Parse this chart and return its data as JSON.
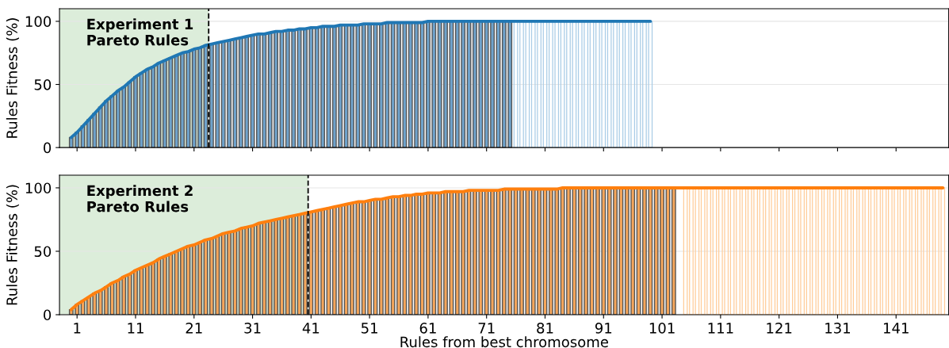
{
  "chart_data": [
    {
      "type": "bar",
      "xlim": [
        -2,
        150
      ],
      "ylim": [
        0,
        110
      ],
      "yticks": [
        0,
        50,
        100
      ],
      "ylabel": "Rules Fitness (%)",
      "grid": "y",
      "tick_labels": "y",
      "xticks": [
        {
          "value": 1,
          "label": null
        },
        {
          "value": 11,
          "label": null
        },
        {
          "value": 21,
          "label": null
        },
        {
          "value": 31,
          "label": null
        },
        {
          "value": 41,
          "label": null
        },
        {
          "value": 51,
          "label": null
        },
        {
          "value": 61,
          "label": null
        },
        {
          "value": 71,
          "label": null
        },
        {
          "value": 81,
          "label": null
        },
        {
          "value": 91,
          "label": null
        },
        {
          "value": 101,
          "label": null
        },
        {
          "value": 111,
          "label": null
        },
        {
          "value": 121,
          "label": null
        },
        {
          "value": 131,
          "label": null
        },
        {
          "value": 141,
          "label": null
        }
      ],
      "x": [
        0,
        1,
        2,
        3,
        4,
        5,
        6,
        7,
        8,
        9,
        10,
        11,
        12,
        13,
        14,
        15,
        16,
        17,
        18,
        19,
        20,
        21,
        22,
        23,
        24,
        25,
        26,
        27,
        28,
        29,
        30,
        31,
        32,
        33,
        34,
        35,
        36,
        37,
        38,
        39,
        40,
        41,
        42,
        43,
        44,
        45,
        46,
        47,
        48,
        49,
        50,
        51,
        52,
        53,
        54,
        55,
        56,
        57,
        58,
        59,
        60,
        61,
        62,
        63,
        64,
        65,
        66,
        67,
        68,
        69,
        70,
        71,
        72,
        73,
        74,
        75,
        76,
        77,
        78,
        79,
        80,
        81,
        82,
        83,
        84,
        85,
        86,
        87,
        88,
        89,
        90,
        91,
        92,
        93,
        94,
        95,
        96,
        97,
        98,
        99
      ],
      "bands": [
        {
          "axis": "x",
          "from": -2,
          "to": 23.5,
          "color": "#dcedda"
        }
      ],
      "ref_lines": [
        {
          "axis": "x",
          "value": 23.5,
          "color": "#000000",
          "line_style": "dashed"
        }
      ],
      "annotations": [
        "Experiment 1\nPareto Rules"
      ],
      "series": [
        {
          "color": "#6fa3cc",
          "values": [
            8,
            12,
            17,
            22,
            27,
            32,
            37,
            41,
            45,
            48,
            52,
            56,
            59,
            62,
            64,
            67,
            69,
            71,
            73,
            75,
            76,
            78,
            79,
            81,
            82,
            83,
            84,
            85,
            86,
            87,
            88,
            89,
            90,
            90,
            91,
            92,
            92,
            93,
            93,
            94,
            94,
            95,
            95,
            96,
            96,
            96,
            97,
            97,
            97,
            97,
            98,
            98,
            98,
            98,
            99,
            99,
            99,
            99,
            99,
            99,
            99,
            100,
            100,
            100,
            100,
            100,
            100,
            100,
            100,
            100,
            100,
            100,
            100,
            100,
            100,
            100,
            null,
            null,
            null,
            null,
            null,
            null,
            null,
            null,
            null,
            null,
            null,
            null,
            null,
            null,
            null,
            null,
            null,
            null,
            null,
            null,
            null,
            null,
            null,
            null
          ]
        },
        {
          "color": "#a9cce6",
          "values": [
            null,
            null,
            null,
            null,
            null,
            null,
            null,
            null,
            null,
            null,
            null,
            null,
            null,
            null,
            null,
            null,
            null,
            null,
            null,
            null,
            null,
            null,
            null,
            null,
            null,
            null,
            null,
            null,
            null,
            null,
            null,
            null,
            null,
            null,
            null,
            null,
            null,
            null,
            null,
            null,
            null,
            null,
            null,
            null,
            null,
            null,
            null,
            null,
            null,
            null,
            null,
            null,
            null,
            null,
            null,
            null,
            null,
            null,
            null,
            null,
            null,
            null,
            null,
            null,
            null,
            null,
            null,
            null,
            null,
            null,
            null,
            null,
            null,
            null,
            null,
            null,
            100,
            100,
            100,
            100,
            100,
            100,
            100,
            100,
            100,
            100,
            100,
            100,
            100,
            100,
            100,
            100,
            100,
            100,
            100,
            100,
            100,
            100,
            100,
            100
          ]
        },
        {
          "type": "line",
          "color": "#1f77b4",
          "values": [
            8,
            12,
            17,
            22,
            27,
            32,
            37,
            41,
            45,
            48,
            52,
            56,
            59,
            62,
            64,
            67,
            69,
            71,
            73,
            75,
            76,
            78,
            79,
            81,
            82,
            83,
            84,
            85,
            86,
            87,
            88,
            89,
            90,
            90,
            91,
            92,
            92,
            93,
            93,
            94,
            94,
            95,
            95,
            96,
            96,
            96,
            97,
            97,
            97,
            97,
            98,
            98,
            98,
            98,
            99,
            99,
            99,
            99,
            99,
            99,
            99,
            100,
            100,
            100,
            100,
            100,
            100,
            100,
            100,
            100,
            100,
            100,
            100,
            100,
            100,
            100,
            100,
            100,
            100,
            100,
            100,
            100,
            100,
            100,
            100,
            100,
            100,
            100,
            100,
            100,
            100,
            100,
            100,
            100,
            100,
            100,
            100,
            100,
            100,
            100
          ]
        }
      ]
    },
    {
      "type": "bar",
      "xlim": [
        -2,
        150
      ],
      "ylim": [
        0,
        110
      ],
      "yticks": [
        0,
        50,
        100
      ],
      "ylabel": "Rules Fitness (%)",
      "xlabel": "Rules from best chromosome",
      "grid": "y",
      "xticks": [
        1,
        11,
        21,
        31,
        41,
        51,
        61,
        71,
        81,
        91,
        101,
        111,
        121,
        131,
        141
      ],
      "x": [
        0,
        1,
        2,
        3,
        4,
        5,
        6,
        7,
        8,
        9,
        10,
        11,
        12,
        13,
        14,
        15,
        16,
        17,
        18,
        19,
        20,
        21,
        22,
        23,
        24,
        25,
        26,
        27,
        28,
        29,
        30,
        31,
        32,
        33,
        34,
        35,
        36,
        37,
        38,
        39,
        40,
        41,
        42,
        43,
        44,
        45,
        46,
        47,
        48,
        49,
        50,
        51,
        52,
        53,
        54,
        55,
        56,
        57,
        58,
        59,
        60,
        61,
        62,
        63,
        64,
        65,
        66,
        67,
        68,
        69,
        70,
        71,
        72,
        73,
        74,
        75,
        76,
        77,
        78,
        79,
        80,
        81,
        82,
        83,
        84,
        85,
        86,
        87,
        88,
        89,
        90,
        91,
        92,
        93,
        94,
        95,
        96,
        97,
        98,
        99,
        100,
        101,
        102,
        103,
        104,
        105,
        106,
        107,
        108,
        109,
        110,
        111,
        112,
        113,
        114,
        115,
        116,
        117,
        118,
        119,
        120,
        121,
        122,
        123,
        124,
        125,
        126,
        127,
        128,
        129,
        130,
        131,
        132,
        133,
        134,
        135,
        136,
        137,
        138,
        139,
        140,
        141,
        142,
        143,
        144,
        145,
        146,
        147,
        148,
        149
      ],
      "bands": [
        {
          "axis": "x",
          "from": -2,
          "to": 40.5,
          "color": "#dcedda"
        }
      ],
      "ref_lines": [
        {
          "axis": "x",
          "value": 40.5,
          "color": "#000000",
          "line_style": "dashed"
        }
      ],
      "annotations": [
        "Experiment 2\nPareto Rules"
      ],
      "series": [
        {
          "color": "#f5a65b",
          "values": [
            4,
            8,
            11,
            14,
            17,
            19,
            22,
            25,
            27,
            30,
            32,
            35,
            37,
            39,
            41,
            44,
            46,
            48,
            50,
            52,
            54,
            55,
            57,
            59,
            60,
            62,
            64,
            65,
            66,
            68,
            69,
            70,
            72,
            73,
            74,
            75,
            76,
            77,
            78,
            79,
            80,
            81,
            82,
            83,
            84,
            85,
            86,
            87,
            88,
            89,
            89,
            90,
            91,
            91,
            92,
            93,
            93,
            94,
            94,
            95,
            95,
            96,
            96,
            96,
            97,
            97,
            97,
            97,
            98,
            98,
            98,
            98,
            98,
            98,
            99,
            99,
            99,
            99,
            99,
            99,
            99,
            99,
            99,
            99,
            100,
            100,
            100,
            100,
            100,
            100,
            100,
            100,
            100,
            100,
            100,
            100,
            100,
            100,
            100,
            100,
            100,
            100,
            100,
            100,
            null,
            null,
            null,
            null,
            null,
            null,
            null,
            null,
            null,
            null,
            null,
            null,
            null,
            null,
            null,
            null,
            null,
            null,
            null,
            null,
            null,
            null,
            null,
            null,
            null,
            null,
            null,
            null,
            null,
            null,
            null,
            null,
            null,
            null,
            null,
            null,
            null,
            null,
            null,
            null,
            null,
            null,
            null,
            null,
            null,
            null
          ]
        },
        {
          "color": "#ffcc99",
          "values": [
            null,
            null,
            null,
            null,
            null,
            null,
            null,
            null,
            null,
            null,
            null,
            null,
            null,
            null,
            null,
            null,
            null,
            null,
            null,
            null,
            null,
            null,
            null,
            null,
            null,
            null,
            null,
            null,
            null,
            null,
            null,
            null,
            null,
            null,
            null,
            null,
            null,
            null,
            null,
            null,
            null,
            null,
            null,
            null,
            null,
            null,
            null,
            null,
            null,
            null,
            null,
            null,
            null,
            null,
            null,
            null,
            null,
            null,
            null,
            null,
            null,
            null,
            null,
            null,
            null,
            null,
            null,
            null,
            null,
            null,
            null,
            null,
            null,
            null,
            null,
            null,
            null,
            null,
            null,
            null,
            null,
            null,
            null,
            null,
            null,
            null,
            null,
            null,
            null,
            null,
            null,
            null,
            null,
            null,
            null,
            null,
            null,
            null,
            null,
            null,
            null,
            null,
            null,
            null,
            null,
            100,
            100,
            100,
            100,
            100,
            100,
            100,
            100,
            100,
            100,
            100,
            100,
            100,
            100,
            100,
            100,
            100,
            100,
            100,
            100,
            100,
            100,
            100,
            100,
            100,
            100,
            100,
            100,
            100,
            100,
            100,
            100,
            100,
            100,
            100,
            100,
            100,
            100,
            100,
            100,
            100,
            100,
            100,
            100,
            100
          ]
        },
        {
          "type": "line",
          "color": "#ff7f0e",
          "values": [
            4,
            8,
            11,
            14,
            17,
            19,
            22,
            25,
            27,
            30,
            32,
            35,
            37,
            39,
            41,
            44,
            46,
            48,
            50,
            52,
            54,
            55,
            57,
            59,
            60,
            62,
            64,
            65,
            66,
            68,
            69,
            70,
            72,
            73,
            74,
            75,
            76,
            77,
            78,
            79,
            80,
            81,
            82,
            83,
            84,
            85,
            86,
            87,
            88,
            89,
            89,
            90,
            91,
            91,
            92,
            93,
            93,
            94,
            94,
            95,
            95,
            96,
            96,
            96,
            97,
            97,
            97,
            97,
            98,
            98,
            98,
            98,
            98,
            98,
            99,
            99,
            99,
            99,
            99,
            99,
            99,
            99,
            99,
            99,
            100,
            100,
            100,
            100,
            100,
            100,
            100,
            100,
            100,
            100,
            100,
            100,
            100,
            100,
            100,
            100,
            100,
            100,
            100,
            100,
            100,
            100,
            100,
            100,
            100,
            100,
            100,
            100,
            100,
            100,
            100,
            100,
            100,
            100,
            100,
            100,
            100,
            100,
            100,
            100,
            100,
            100,
            100,
            100,
            100,
            100,
            100,
            100,
            100,
            100,
            100,
            100,
            100,
            100,
            100,
            100,
            100,
            100,
            100,
            100,
            100,
            100,
            100,
            100,
            100,
            100
          ]
        }
      ]
    }
  ]
}
